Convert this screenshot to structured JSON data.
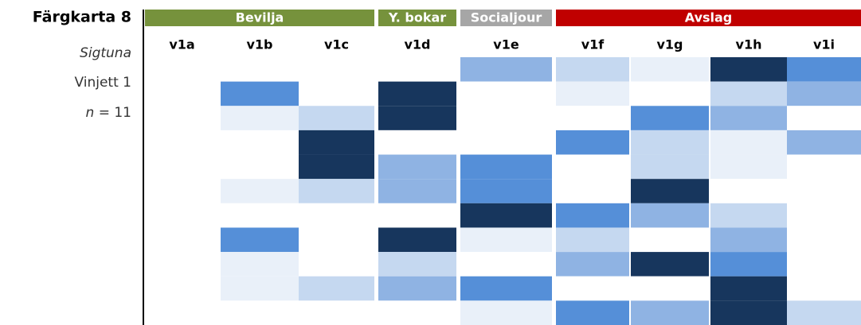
{
  "chart_data": {
    "type": "heatmap",
    "title": "Färgkarta 8",
    "subtitle": "Sigtuna",
    "caption": "Vinjett 1",
    "sample_label": "n",
    "sample_text": "= 11",
    "groups": [
      {
        "name": "Bevilja",
        "color": "#76923c",
        "columns": 3
      },
      {
        "name": "Y. bokar",
        "color": "#76923c",
        "columns": 1
      },
      {
        "name": "Socialjour",
        "color": "#a6a6a6",
        "columns": 1
      },
      {
        "name": "Avslag",
        "color": "#c00000",
        "columns": 4
      }
    ],
    "categories": [
      "v1a",
      "v1b",
      "v1c",
      "v1d",
      "v1e",
      "v1f",
      "v1g",
      "v1h",
      "v1i"
    ],
    "colors": [
      "#ffffff",
      "#e9f0f9",
      "#c5d8f0",
      "#8fb3e3",
      "#558fd8",
      "#17365d"
    ],
    "values": [
      [
        0,
        0,
        0,
        0,
        3,
        2,
        1,
        5,
        4
      ],
      [
        0,
        4,
        0,
        5,
        0,
        1,
        0,
        2,
        3
      ],
      [
        0,
        1,
        2,
        5,
        0,
        0,
        4,
        3,
        0
      ],
      [
        0,
        0,
        5,
        0,
        0,
        4,
        2,
        1,
        3
      ],
      [
        0,
        0,
        5,
        3,
        4,
        0,
        2,
        1,
        0
      ],
      [
        0,
        1,
        2,
        3,
        4,
        0,
        5,
        0,
        0
      ],
      [
        0,
        0,
        0,
        0,
        5,
        4,
        3,
        2,
        0
      ],
      [
        0,
        4,
        0,
        5,
        1,
        2,
        0,
        3,
        0
      ],
      [
        0,
        1,
        0,
        2,
        0,
        3,
        5,
        4,
        0
      ],
      [
        0,
        1,
        2,
        3,
        4,
        0,
        0,
        5,
        0
      ],
      [
        0,
        0,
        0,
        0,
        1,
        4,
        3,
        5,
        2
      ]
    ]
  }
}
